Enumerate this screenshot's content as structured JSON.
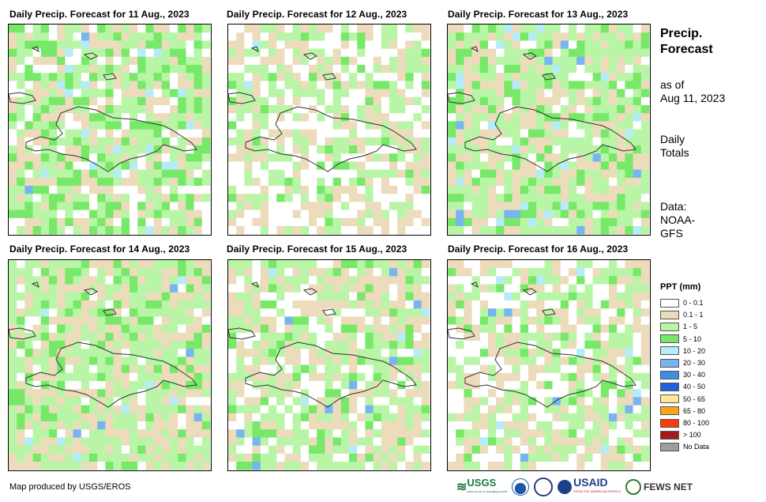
{
  "panels": [
    {
      "title": "Daily Precip. Forecast for 11 Aug., 2023"
    },
    {
      "title": "Daily Precip. Forecast for 12 Aug., 2023"
    },
    {
      "title": "Daily Precip. Forecast for 13 Aug., 2023"
    },
    {
      "title": "Daily Precip. Forecast for 14 Aug., 2023"
    },
    {
      "title": "Daily Precip. Forecast for 15 Aug., 2023"
    },
    {
      "title": "Daily Precip. Forecast for 16 Aug., 2023"
    }
  ],
  "side": {
    "title_line1": "Precip.",
    "title_line2": "Forecast",
    "asof_line1": "as of",
    "asof_line2": "Aug 11, 2023",
    "daily_line1": "Daily",
    "daily_line2": "Totals",
    "data_line1": "Data:",
    "data_line2": "NOAA-",
    "data_line3": "GFS"
  },
  "legend": {
    "title": "PPT (mm)",
    "items": [
      {
        "label": "0 - 0.1",
        "color": "#ffffff"
      },
      {
        "label": "0.1 - 1",
        "color": "#ecdcbc"
      },
      {
        "label": "1 - 5",
        "color": "#b8f5a6"
      },
      {
        "label": "5 - 10",
        "color": "#77e868"
      },
      {
        "label": "10 - 20",
        "color": "#b4ecf7"
      },
      {
        "label": "20 - 30",
        "color": "#78b4ef"
      },
      {
        "label": "30 - 40",
        "color": "#3e8ee8"
      },
      {
        "label": "40 - 50",
        "color": "#2060d8"
      },
      {
        "label": "50 - 65",
        "color": "#fde79a"
      },
      {
        "label": "65 - 80",
        "color": "#f8a51a"
      },
      {
        "label": "80 - 100",
        "color": "#f73b0c"
      },
      {
        "label": "> 100",
        "color": "#a51a1a"
      },
      {
        "label": "No Data",
        "color": "#9e9e9e"
      }
    ]
  },
  "credit": "Map produced by USGS/EROS",
  "logos": {
    "usgs": "USGS",
    "usgs_tagline": "science for a changing world",
    "usaid": "USAID",
    "usaid_tagline": "FROM THE AMERICAN PEOPLE",
    "fewsnet": "FEWS NET"
  }
}
